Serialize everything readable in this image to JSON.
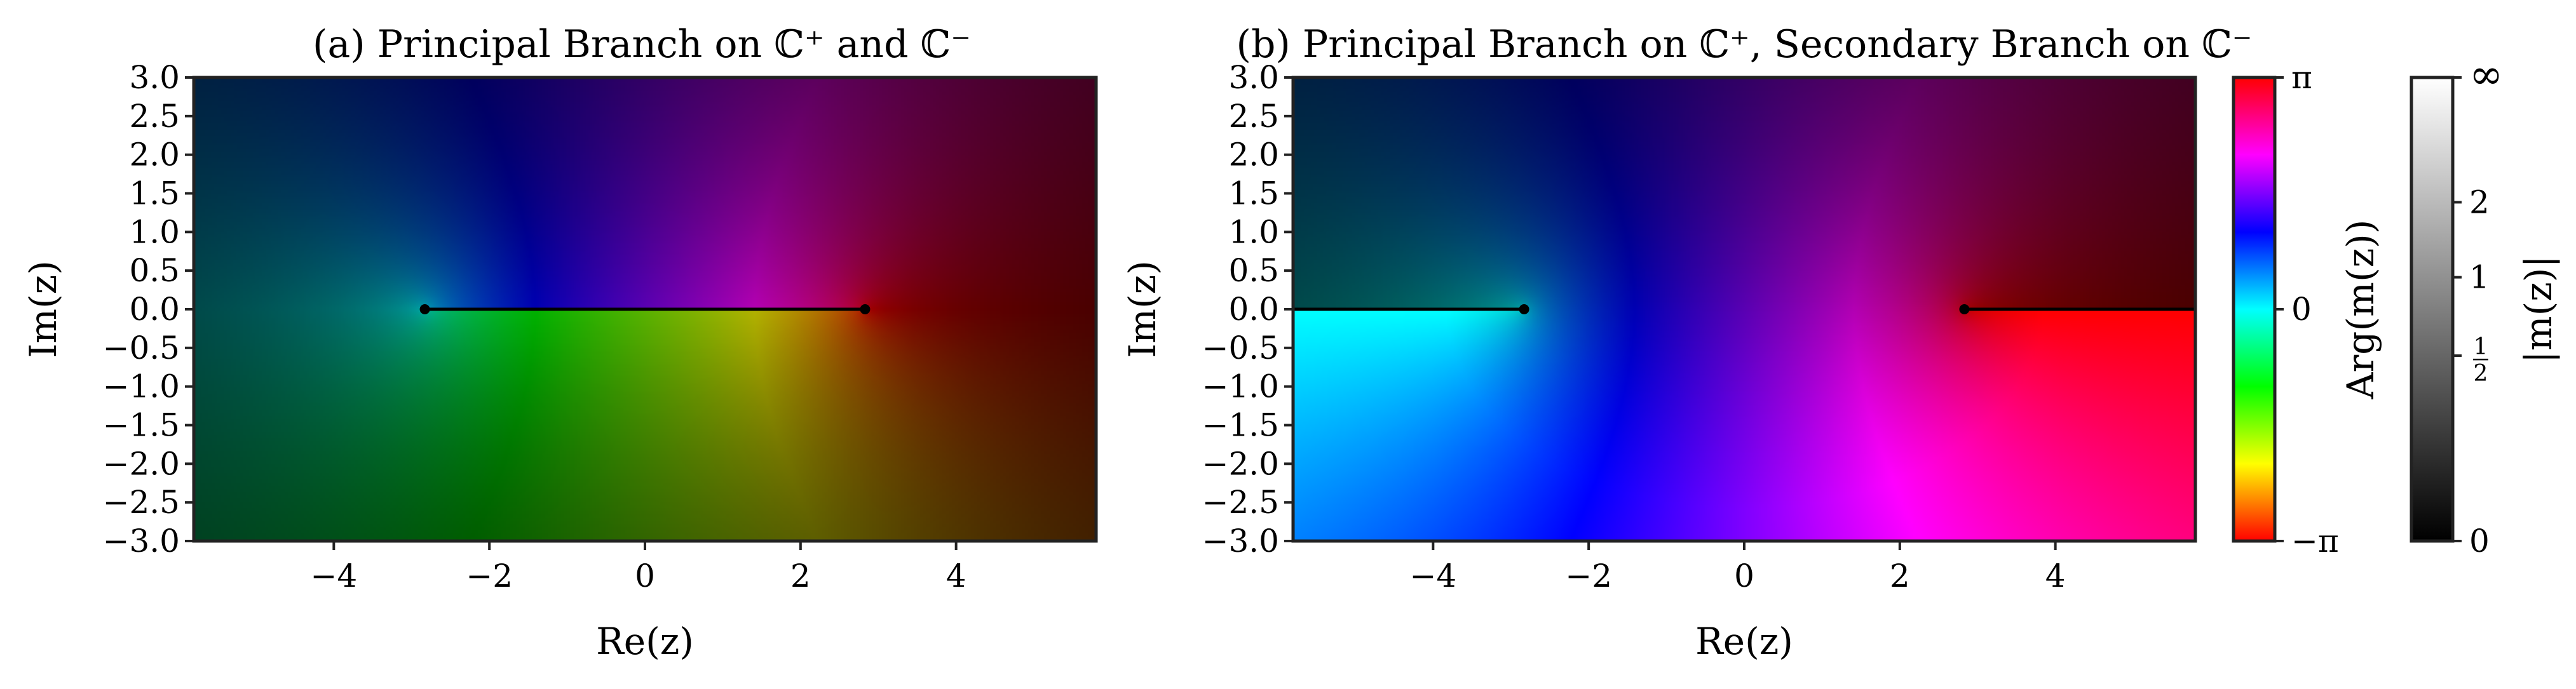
{
  "chart_data": [
    {
      "type": "heatmap",
      "title": "(a) Principal Branch on ℂ⁺ and ℂ⁻",
      "xlabel": "Re(z)",
      "ylabel": "Im(z)",
      "xlim": [
        -5.8,
        5.8
      ],
      "ylim": [
        -3.0,
        3.0
      ],
      "xticks": [
        -4,
        -2,
        0,
        2,
        4
      ],
      "xtick_labels": [
        "−4",
        "−2",
        "0",
        "2",
        "4"
      ],
      "yticks": [
        3.0,
        2.5,
        2.0,
        1.5,
        1.0,
        0.5,
        0.0,
        -0.5,
        -1.0,
        -1.5,
        -2.0,
        -2.5,
        -3.0
      ],
      "ytick_labels": [
        "3.0",
        "2.5",
        "2.0",
        "1.5",
        "1.0",
        "0.5",
        "0.0",
        "−0.5",
        "−1.0",
        "−1.5",
        "−2.0",
        "−2.5",
        "−3.0"
      ],
      "branch_points": [
        [
          -2.83,
          0
        ],
        [
          2.83,
          0
        ]
      ],
      "branch_cut": [
        [
          -2.83,
          0
        ],
        [
          2.83,
          0
        ]
      ],
      "branch": "principal-both",
      "grid": false
    },
    {
      "type": "heatmap",
      "title": "(b) Principal Branch on ℂ⁺, Secondary Branch on ℂ⁻",
      "xlabel": "Re(z)",
      "ylabel": "Im(z)",
      "xlim": [
        -5.8,
        5.8
      ],
      "ylim": [
        -3.0,
        3.0
      ],
      "xticks": [
        -4,
        -2,
        0,
        2,
        4
      ],
      "xtick_labels": [
        "−4",
        "−2",
        "0",
        "2",
        "4"
      ],
      "yticks": [
        3.0,
        2.5,
        2.0,
        1.5,
        1.0,
        0.5,
        0.0,
        -0.5,
        -1.0,
        -1.5,
        -2.0,
        -2.5,
        -3.0
      ],
      "ytick_labels": [
        "3.0",
        "2.5",
        "2.0",
        "1.5",
        "1.0",
        "0.5",
        "0.0",
        "−0.5",
        "−1.0",
        "−1.5",
        "−2.0",
        "−2.5",
        "−3.0"
      ],
      "branch_points": [
        [
          -2.83,
          0
        ],
        [
          2.83,
          0
        ]
      ],
      "branch_cuts": [
        [
          [
            -5.8,
            0
          ],
          [
            -2.83,
            0
          ]
        ],
        [
          [
            2.83,
            0
          ],
          [
            5.8,
            0
          ]
        ]
      ],
      "branch": "secondary-lower",
      "grid": false
    }
  ],
  "colorbars": {
    "arg": {
      "label": "Arg(m(z))",
      "ticks": [
        {
          "value": 3.1416,
          "label": "π"
        },
        {
          "value": 0,
          "label": "0"
        },
        {
          "value": -3.1416,
          "label": "−π"
        }
      ],
      "range": [
        -3.1416,
        3.1416
      ],
      "colormap": "hsv"
    },
    "mod": {
      "label": "|m(z)|",
      "ticks": [
        {
          "value": "inf",
          "label": "∞"
        },
        {
          "value": 2,
          "label": "2"
        },
        {
          "value": 1,
          "label": "1"
        },
        {
          "value": 0.5,
          "label": "1/2"
        },
        {
          "value": 0,
          "label": "0"
        }
      ],
      "colormap": "gray"
    }
  },
  "colors": {
    "cut_line": "#000000",
    "frame": "#222222"
  }
}
